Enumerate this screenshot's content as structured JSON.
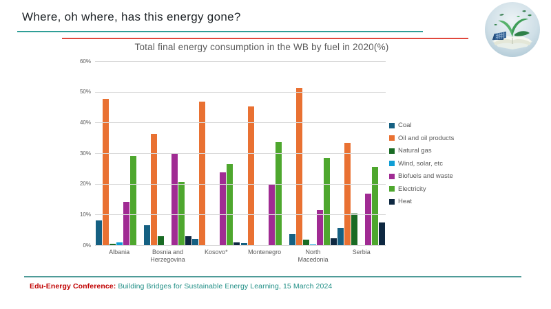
{
  "slide": {
    "title": "Where, oh where, has this energy gone?",
    "footer_prefix": "Edu-Energy Conference:",
    "footer_text": " Building Bridges for Sustainable Energy Learning, 15 March 2024"
  },
  "decor": {
    "top_line_teal": "#2f9e97",
    "top_line_red": "#e0473c",
    "bottom_line_teal": "#4f9b98",
    "logo_description": "open-book-with-green-energy-sprouting"
  },
  "chart_data": {
    "type": "bar",
    "title": "Total final energy consumption in the WB by fuel in 2020(%)",
    "categories": [
      "Albania",
      "Bosnia and Herzegovina",
      "Kosovo*",
      "Montenegro",
      "North Macedonia",
      "Serbia"
    ],
    "series": [
      {
        "name": "Coal",
        "color": "#156082",
        "values": [
          8,
          6.5,
          2,
          0.7,
          3.5,
          5.5
        ]
      },
      {
        "name": "Oil and oil products",
        "color": "#E97132",
        "values": [
          47.8,
          36.2,
          46.8,
          45.2,
          51.2,
          33.3
        ]
      },
      {
        "name": "Natural gas",
        "color": "#196B24",
        "values": [
          0.5,
          3,
          0,
          0,
          1.8,
          10.4
        ]
      },
      {
        "name": "Wind, solar, etc",
        "color": "#0F9ED5",
        "values": [
          1,
          0,
          0,
          0,
          0.3,
          0
        ]
      },
      {
        "name": "Biofuels and waste",
        "color": "#A02B93",
        "values": [
          14,
          30,
          23.8,
          20,
          11.5,
          16.8
        ]
      },
      {
        "name": "Electricity",
        "color": "#4EA72E",
        "values": [
          29,
          20.5,
          26.5,
          33.5,
          28.5,
          25.5
        ]
      },
      {
        "name": "Heat",
        "color": "#0E2841",
        "values": [
          0,
          3,
          1,
          0,
          2.3,
          7.5
        ]
      }
    ],
    "xlabel": "",
    "ylabel": "",
    "ylim": [
      0,
      60
    ],
    "ytick_step": 10,
    "ytick_suffix": "%",
    "grid": true,
    "legend_position": "right"
  }
}
